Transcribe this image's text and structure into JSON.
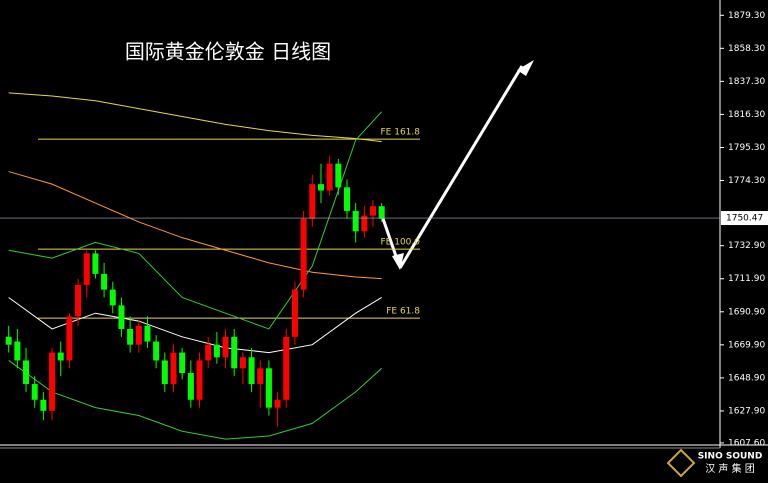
{
  "chart_data": {
    "type": "candlestick",
    "title": "国际黄金伦敦金 日线图",
    "xlim": [
      -1,
      82
    ],
    "ylim": [
      1605,
      1889
    ],
    "yticks": [
      {
        "value": 1607.6,
        "label": "1607.60"
      },
      {
        "value": 1627.9,
        "label": "1627.90"
      },
      {
        "value": 1648.9,
        "label": "1648.90"
      },
      {
        "value": 1669.9,
        "label": "1669.90"
      },
      {
        "value": 1690.9,
        "label": "1690.90"
      },
      {
        "value": 1711.9,
        "label": "1711.90"
      },
      {
        "value": 1732.9,
        "label": "1732.90"
      },
      {
        "value": 1774.3,
        "label": "1774.30"
      },
      {
        "value": 1795.3,
        "label": "1795.30"
      },
      {
        "value": 1816.3,
        "label": "1816.30"
      },
      {
        "value": 1837.3,
        "label": "1837.30"
      },
      {
        "value": 1858.3,
        "label": "1858.30"
      },
      {
        "value": 1879.3,
        "label": "1879.30"
      }
    ],
    "up_color": "#ff0000",
    "down_color": "#00ff00",
    "open": [
      1675,
      1672,
      1660,
      1645,
      1635,
      1628,
      1665,
      1660,
      1688,
      1708,
      1728,
      1715,
      1705,
      1695,
      1680,
      1670,
      1682,
      1672,
      1660,
      1645,
      1665,
      1652,
      1635,
      1660,
      1670,
      1662,
      1675,
      1655,
      1662,
      1645,
      1655,
      1630,
      1635,
      1675,
      1705,
      1750,
      1772,
      1768,
      1785,
      1770,
      1755,
      1742,
      1752,
      1758
    ],
    "high": [
      1682,
      1680,
      1668,
      1650,
      1640,
      1668,
      1672,
      1690,
      1712,
      1730,
      1730,
      1722,
      1710,
      1700,
      1688,
      1685,
      1688,
      1676,
      1665,
      1670,
      1668,
      1660,
      1665,
      1675,
      1678,
      1680,
      1680,
      1665,
      1668,
      1660,
      1660,
      1640,
      1680,
      1710,
      1755,
      1778,
      1785,
      1790,
      1788,
      1775,
      1760,
      1758,
      1762,
      1760
    ],
    "low": [
      1665,
      1655,
      1640,
      1630,
      1622,
      1622,
      1650,
      1655,
      1682,
      1700,
      1712,
      1700,
      1690,
      1675,
      1665,
      1665,
      1668,
      1655,
      1640,
      1640,
      1648,
      1630,
      1630,
      1655,
      1658,
      1655,
      1650,
      1645,
      1640,
      1630,
      1625,
      1618,
      1630,
      1670,
      1700,
      1745,
      1760,
      1765,
      1765,
      1750,
      1735,
      1738,
      1745,
      1748
    ],
    "close": [
      1670,
      1660,
      1645,
      1635,
      1628,
      1665,
      1660,
      1688,
      1708,
      1728,
      1715,
      1705,
      1695,
      1680,
      1670,
      1682,
      1672,
      1660,
      1645,
      1665,
      1652,
      1635,
      1660,
      1670,
      1662,
      1675,
      1655,
      1662,
      1645,
      1655,
      1630,
      1635,
      1675,
      1705,
      1750,
      1772,
      1768,
      1785,
      1770,
      1755,
      1742,
      1752,
      1758,
      1750
    ],
    "lines": [
      {
        "color": "#e6d84a",
        "x": [
          0,
          5,
          10,
          15,
          20,
          25,
          30,
          35,
          40,
          43
        ],
        "values": [
          1830,
          1828,
          1825,
          1820,
          1815,
          1810,
          1806,
          1803,
          1801,
          1799
        ]
      },
      {
        "color": "#ff9933",
        "x": [
          0,
          5,
          10,
          15,
          20,
          25,
          30,
          35,
          40,
          43
        ],
        "values": [
          1780,
          1772,
          1760,
          1748,
          1738,
          1730,
          1722,
          1716,
          1713,
          1712
        ]
      },
      {
        "color": "#ffffff",
        "x": [
          0,
          5,
          10,
          15,
          20,
          25,
          30,
          35,
          40,
          43
        ],
        "values": [
          1700,
          1680,
          1690,
          1685,
          1675,
          1668,
          1665,
          1670,
          1690,
          1700
        ]
      },
      {
        "color": "#33cc33",
        "x": [
          0,
          5,
          10,
          15,
          20,
          25,
          30,
          35,
          40,
          43
        ],
        "values": [
          1730,
          1725,
          1735,
          1728,
          1700,
          1690,
          1680,
          1720,
          1800,
          1818
        ]
      },
      {
        "color": "#33cc33",
        "x": [
          0,
          5,
          10,
          15,
          20,
          25,
          30,
          35,
          40,
          43
        ],
        "values": [
          1660,
          1640,
          1630,
          1625,
          1615,
          1610,
          1612,
          1620,
          1640,
          1655
        ]
      }
    ],
    "levels": [
      {
        "label": "FE 161.8",
        "value": 1800.6
      },
      {
        "label": "FE 100.0",
        "value": 1730.7
      },
      {
        "label": "FE 61.8",
        "value": 1686.9
      }
    ],
    "last_price": 1750.47
  },
  "logo": {
    "name": "SINO SOUND",
    "sub": "汉 声 集 团"
  }
}
